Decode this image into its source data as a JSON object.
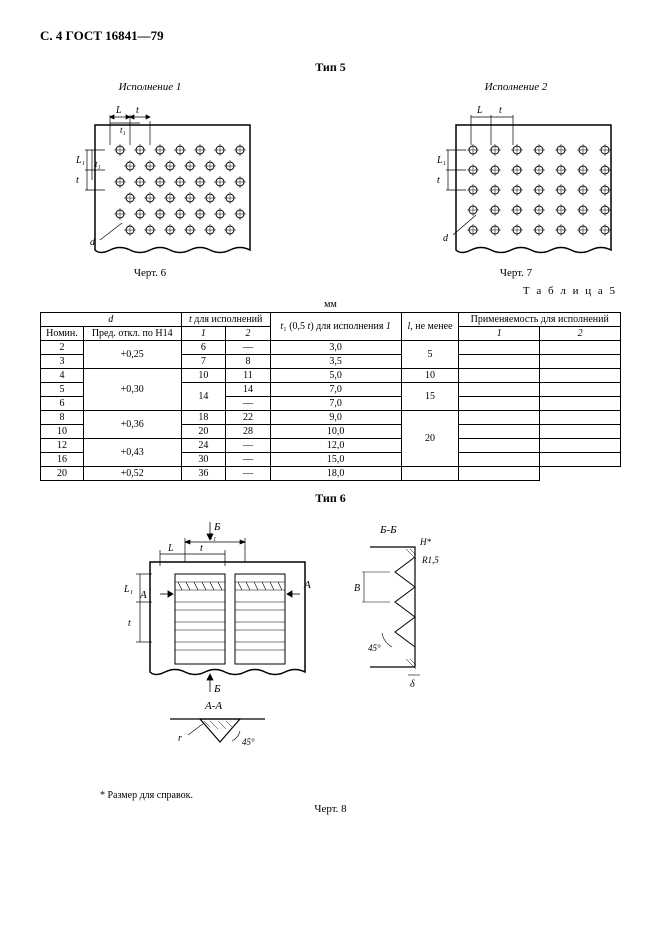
{
  "header": "С. 4 ГОСТ 16841—79",
  "tip5_title": "Тип 5",
  "fig6": {
    "subtitle": "Исполнение 1",
    "caption": "Черт. 6",
    "labels": {
      "L": "L",
      "t": "t",
      "t1": "t₁",
      "L1": "L₁",
      "tv": "t",
      "d": "d"
    }
  },
  "fig7": {
    "subtitle": "Исполнение 2",
    "caption": "Черт. 7",
    "labels": {
      "L": "L",
      "t": "t",
      "L1": "L₁",
      "tv": "t",
      "d": "d"
    }
  },
  "table5": {
    "label": "Т а б л и ц а   5",
    "unit": "мм",
    "head": {
      "d": "d",
      "nomin": "Номин.",
      "pred": "Пред. откл. по Н14",
      "t_isp": "t для исполнений",
      "col1": "1",
      "col2": "2",
      "t1": "t₁ (0,5 t) для исполнения 1",
      "l": "l, не менее",
      "prim": "Применяемость для исполнений",
      "p1": "1",
      "p2": "2"
    },
    "rows": [
      {
        "nomin": "2",
        "pred": "+0,25",
        "pred_rs": 2,
        "t1v": "6",
        "t2v": "—",
        "t1c": "3,0",
        "l": "5",
        "l_rs": 2
      },
      {
        "nomin": "3",
        "pred": null,
        "t1v": "7",
        "t2v": "8",
        "t1c": "3,5",
        "l": null
      },
      {
        "nomin": "4",
        "pred": "+0,30",
        "pred_rs": 3,
        "t1v": "10",
        "t2v": "11",
        "t1c": "5,0",
        "l": "10",
        "l_rs": 1
      },
      {
        "nomin": "5",
        "pred": null,
        "t1v": "14",
        "t1v_rs": 2,
        "t2v": "14",
        "t1c": "7,0",
        "l": "15",
        "l_rs": 2
      },
      {
        "nomin": "6",
        "pred": null,
        "t1v": null,
        "t2v": "—",
        "t1c": "7,0",
        "l": null
      },
      {
        "nomin": "8",
        "pred": "+0,36",
        "pred_rs": 2,
        "t1v": "18",
        "t2v": "22",
        "t1c": "9,0",
        "l": "20",
        "l_rs": 4
      },
      {
        "nomin": "10",
        "pred": null,
        "t1v": "20",
        "t2v": "28",
        "t1c": "10,0",
        "l": null
      },
      {
        "nomin": "12",
        "pred": "+0,43",
        "pred_rs": 2,
        "t1v": "24",
        "t2v": "—",
        "t1c": "12,0",
        "l": null
      },
      {
        "nomin": "16",
        "pred": null,
        "t1v": "30",
        "t2v": "—",
        "t1c": "15,0",
        "l": null
      },
      {
        "nomin": "20",
        "pred": "+0,52",
        "pred_rs": 1,
        "t1v": "36",
        "t2v": "—",
        "t1c": "18,0",
        "l": null
      }
    ]
  },
  "tip6_title": "Тип 6",
  "fig8": {
    "caption": "Черт. 8",
    "labels": {
      "B": "Б",
      "Barrow": "Б",
      "t1": "t₁",
      "L": "L",
      "t": "t",
      "A": "A",
      "L1": "L₁",
      "tv": "t",
      "BB": "Б-Б",
      "Hstar": "H*",
      "R15": "R1,5",
      "Bsec": "B",
      "ang45": "45°",
      "delta": "δ",
      "AA": "А-А",
      "r": "r",
      "ang45b": "45°"
    }
  },
  "footnote": "*   Размер для справок."
}
